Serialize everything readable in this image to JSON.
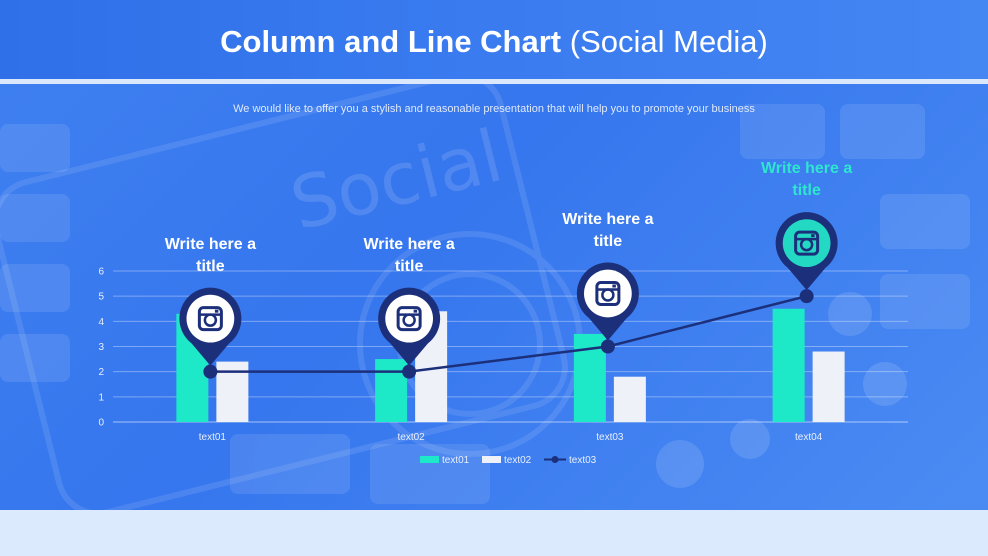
{
  "header": {
    "title_bold": "Column and Line Chart",
    "title_light": "(Social Media)"
  },
  "subtitle": "We would like to offer you a stylish and reasonable presentation that will help you to promote your business",
  "background_text": "Social",
  "annotations": [
    {
      "title": "Write here a title",
      "icon": "instagram-icon",
      "color": "#ffffff"
    },
    {
      "title": "Write here a title",
      "icon": "instagram-icon",
      "color": "#ffffff"
    },
    {
      "title": "Write here a title",
      "icon": "instagram-icon",
      "color": "#ffffff"
    },
    {
      "title": "Write here a title",
      "icon": "instagram-icon",
      "color": "#2ee6d0"
    }
  ],
  "colors": {
    "series1": "#1de9c9",
    "series2": "#eef1f7",
    "series3": "#1c2f7a",
    "pin": "#1c2f7a",
    "pin_highlight": "#23d9c4"
  },
  "chart_data": {
    "type": "bar",
    "categories": [
      "text01",
      "text02",
      "text03",
      "text04"
    ],
    "series": [
      {
        "name": "text01",
        "type": "bar",
        "values": [
          4.3,
          2.5,
          3.5,
          4.5
        ]
      },
      {
        "name": "text02",
        "type": "bar",
        "values": [
          2.4,
          4.4,
          1.8,
          2.8
        ]
      },
      {
        "name": "text03",
        "type": "line",
        "values": [
          2,
          2,
          3,
          5
        ]
      }
    ],
    "ylim": [
      0,
      6
    ],
    "yticks": [
      0,
      1,
      2,
      3,
      4,
      5,
      6
    ],
    "grid": true,
    "legend": "bottom"
  }
}
